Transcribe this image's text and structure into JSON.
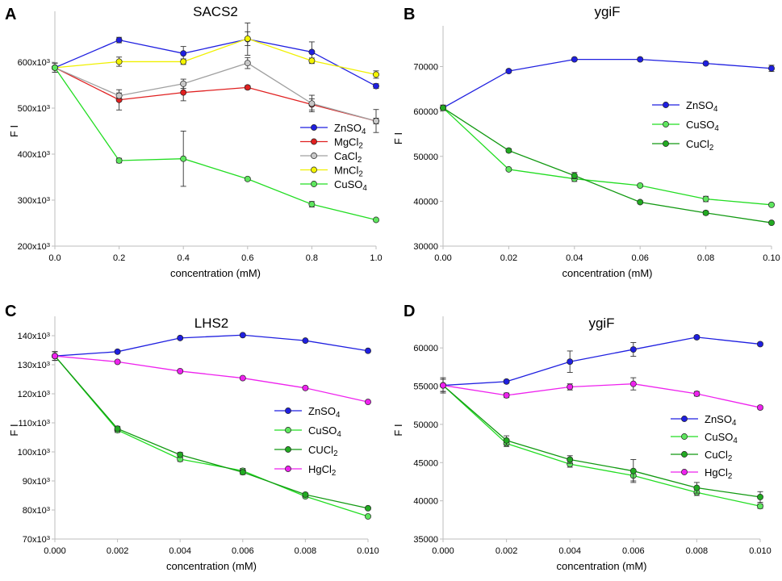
{
  "chart_data": [
    {
      "panel": "A",
      "type": "line",
      "title": "SACS2",
      "xlabel": "concentration (mM)",
      "ylabel": "F I",
      "xlim": [
        0,
        1.0
      ],
      "ylim": [
        200000,
        700000
      ],
      "xticks": [
        0,
        0.2,
        0.4,
        0.6,
        0.8,
        1.0
      ],
      "xtick_labels": [
        "0.0",
        "0.2",
        "0.4",
        "0.6",
        "0.8",
        "1.0"
      ],
      "yticks": [
        200000,
        300000,
        400000,
        500000,
        600000
      ],
      "ytick_labels": [
        [
          "200x10",
          "3"
        ],
        [
          "300x10",
          "3"
        ],
        [
          "400x10",
          "3"
        ],
        [
          "500x10",
          "3"
        ],
        [
          "600x10",
          "3"
        ]
      ],
      "x": [
        0,
        0.2,
        0.4,
        0.6,
        0.8,
        1.0
      ],
      "legend_position": "right",
      "series": [
        {
          "name": "ZnSO",
          "sub": "4",
          "color": "#1f1fe0",
          "fill": "#1f1fe0",
          "values": [
            588000,
            648000,
            619000,
            650000,
            622000,
            548000
          ],
          "errors": [
            10000,
            6000,
            15000,
            35000,
            22000,
            5000
          ]
        },
        {
          "name": "MgCl",
          "sub": "2",
          "color": "#e02020",
          "fill": "#e02020",
          "values": [
            588000,
            518000,
            534000,
            545000,
            508000,
            472000
          ],
          "errors": [
            10000,
            22000,
            18000,
            4000,
            12000,
            25000
          ]
        },
        {
          "name": "CaCl",
          "sub": "2",
          "color": "#a0a0a0",
          "fill": "#c8c8c8",
          "values": [
            588000,
            527000,
            553000,
            598000,
            510000,
            472000
          ],
          "errors": [
            10000,
            6000,
            10000,
            12000,
            18000,
            6000
          ]
        },
        {
          "name": "MnCl",
          "sub": "2",
          "color": "#f0f000",
          "fill": "#f4f400",
          "values": [
            588000,
            601000,
            601000,
            651000,
            603000,
            573000
          ],
          "errors": [
            10000,
            10000,
            6000,
            15000,
            6000,
            8000
          ]
        },
        {
          "name": "CuSO",
          "sub": "4",
          "color": "#22dd22",
          "fill": "#5ee65e",
          "values": [
            588000,
            386000,
            390000,
            346000,
            291000,
            257000
          ],
          "errors": [
            10000,
            5000,
            60000,
            3000,
            6000,
            3000
          ]
        }
      ]
    },
    {
      "panel": "B",
      "type": "line",
      "title": "ygiF",
      "xlabel": "concentration (mM)",
      "ylabel": "F I",
      "xlim": [
        0,
        0.1
      ],
      "ylim": [
        30000,
        78000
      ],
      "xticks": [
        0,
        0.02,
        0.04,
        0.06,
        0.08,
        0.1
      ],
      "xtick_labels": [
        "0.00",
        "0.02",
        "0.04",
        "0.06",
        "0.08",
        "0.10"
      ],
      "yticks": [
        30000,
        40000,
        50000,
        60000,
        70000
      ],
      "ytick_labels": [
        [
          "30000",
          ""
        ],
        [
          "40000",
          ""
        ],
        [
          "50000",
          ""
        ],
        [
          "60000",
          ""
        ],
        [
          "70000",
          ""
        ]
      ],
      "x": [
        0,
        0.02,
        0.04,
        0.06,
        0.08,
        0.1
      ],
      "legend_position": "center-right",
      "series": [
        {
          "name": "ZnSO",
          "sub": "4",
          "color": "#1f1fe0",
          "fill": "#1f1fe0",
          "values": [
            60800,
            69000,
            71600,
            71600,
            70700,
            69600
          ],
          "errors": [
            600,
            300,
            300,
            300,
            300,
            700
          ]
        },
        {
          "name": "CuSO",
          "sub": "4",
          "color": "#22dd22",
          "fill": "#5ee65e",
          "values": [
            60800,
            47100,
            45000,
            43500,
            40500,
            39200
          ],
          "errors": [
            600,
            300,
            600,
            300,
            600,
            300
          ]
        },
        {
          "name": "CuCl",
          "sub": "2",
          "color": "#119911",
          "fill": "#22aa22",
          "values": [
            60800,
            51300,
            45700,
            39800,
            37400,
            35200
          ],
          "errors": [
            600,
            400,
            700,
            300,
            400,
            300
          ]
        }
      ]
    },
    {
      "panel": "C",
      "type": "line",
      "title": "LHS2",
      "xlabel": "concentration (mM)",
      "ylabel": "F I",
      "xlim": [
        0,
        0.01
      ],
      "ylim": [
        70000,
        145000
      ],
      "xticks": [
        0,
        0.002,
        0.004,
        0.006,
        0.008,
        0.01
      ],
      "xtick_labels": [
        "0.000",
        "0.002",
        "0.004",
        "0.006",
        "0.008",
        "0.010"
      ],
      "yticks": [
        70000,
        80000,
        90000,
        100000,
        110000,
        120000,
        130000,
        140000
      ],
      "ytick_labels": [
        [
          "70x10",
          "3"
        ],
        [
          "80x10",
          "3"
        ],
        [
          "90x10",
          "3"
        ],
        [
          "100x10",
          "3"
        ],
        [
          "110x10",
          "3"
        ],
        [
          "120x10",
          "3"
        ],
        [
          "130x10",
          "3"
        ],
        [
          "140x10",
          "3"
        ]
      ],
      "x": [
        0,
        0.002,
        0.004,
        0.006,
        0.008,
        0.01
      ],
      "legend_position": "center-right",
      "series": [
        {
          "name": "ZnSO",
          "sub": "4",
          "color": "#1f1fe0",
          "fill": "#1f1fe0",
          "values": [
            133000,
            134500,
            139200,
            140200,
            138300,
            134800
          ],
          "errors": [
            1500,
            300,
            300,
            300,
            300,
            300
          ]
        },
        {
          "name": "CuSO",
          "sub": "4",
          "color": "#22dd22",
          "fill": "#5ee65e",
          "values": [
            133000,
            107500,
            97500,
            93500,
            84700,
            77800
          ],
          "errors": [
            1500,
            800,
            800,
            800,
            500,
            300
          ]
        },
        {
          "name": "CUCl",
          "sub": "2",
          "color": "#119911",
          "fill": "#22aa22",
          "values": [
            133000,
            108000,
            99000,
            93000,
            85300,
            80600
          ],
          "errors": [
            1500,
            800,
            800,
            800,
            500,
            300
          ]
        },
        {
          "name": "HgCl",
          "sub": "2",
          "color": "#ee22ee",
          "fill": "#ee22ee",
          "values": [
            133000,
            131000,
            127800,
            125400,
            122000,
            117200
          ],
          "errors": [
            1500,
            300,
            300,
            300,
            300,
            300
          ]
        }
      ]
    },
    {
      "panel": "D",
      "type": "line",
      "title": "ygiF",
      "xlabel": "concentration (mM)",
      "ylabel": "F I",
      "xlim": [
        0,
        0.01
      ],
      "ylim": [
        35000,
        63500
      ],
      "xticks": [
        0,
        0.002,
        0.004,
        0.006,
        0.008,
        0.01
      ],
      "xtick_labels": [
        "0.000",
        "0.002",
        "0.004",
        "0.006",
        "0.008",
        "0.010"
      ],
      "yticks": [
        35000,
        40000,
        45000,
        50000,
        55000,
        60000
      ],
      "ytick_labels": [
        [
          "35000",
          ""
        ],
        [
          "40000",
          ""
        ],
        [
          "45000",
          ""
        ],
        [
          "50000",
          ""
        ],
        [
          "55000",
          ""
        ],
        [
          "60000",
          ""
        ]
      ],
      "x": [
        0,
        0.002,
        0.004,
        0.006,
        0.008,
        0.01
      ],
      "legend_position": "center-right",
      "series": [
        {
          "name": "ZnSO",
          "sub": "4",
          "color": "#1f1fe0",
          "fill": "#1f1fe0",
          "values": [
            55100,
            55600,
            58200,
            59800,
            61400,
            60500
          ],
          "errors": [
            800,
            200,
            1400,
            900,
            200,
            200
          ]
        },
        {
          "name": "CuSO",
          "sub": "4",
          "color": "#22dd22",
          "fill": "#5ee65e",
          "values": [
            55100,
            47500,
            44800,
            43300,
            41100,
            39300
          ],
          "errors": [
            800,
            400,
            400,
            700,
            400,
            300
          ]
        },
        {
          "name": "CuCl",
          "sub": "2",
          "color": "#119911",
          "fill": "#22aa22",
          "values": [
            55100,
            47900,
            45400,
            43900,
            41700,
            40500
          ],
          "errors": [
            1000,
            600,
            500,
            1500,
            700,
            700
          ]
        },
        {
          "name": "HgCl",
          "sub": "2",
          "color": "#ee22ee",
          "fill": "#ee22ee",
          "values": [
            55100,
            53800,
            54900,
            55300,
            54000,
            52200
          ],
          "errors": [
            800,
            300,
            400,
            800,
            300,
            200
          ]
        }
      ]
    }
  ]
}
